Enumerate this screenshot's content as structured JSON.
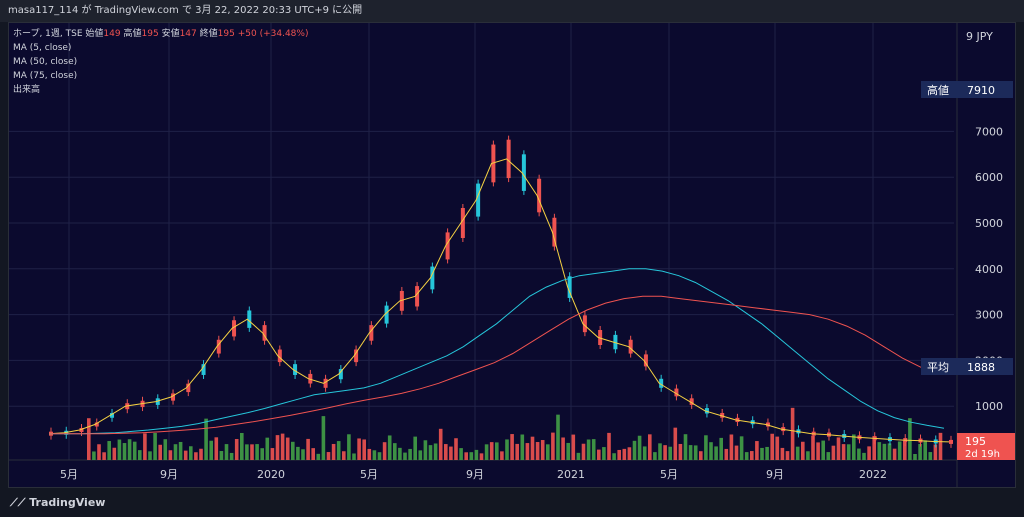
{
  "topbar": {
    "text": "masa117_114 が TradingView.com で 3月 22, 2022 20:33 UTC+9 に公開"
  },
  "legend": {
    "symbol": "ホープ, 1週, TSE",
    "o_label": "始値",
    "o_val": "149",
    "h_label": "高値",
    "h_val": "195",
    "l_label": "安値",
    "l_val": "147",
    "c_label": "終値",
    "c_val": "195",
    "change": "+50 (+34.48%)",
    "ma1": "MA (5, close)",
    "ma2": "MA (50, close)",
    "ma3": "MA (75, close)",
    "volume": "出来高"
  },
  "axis": {
    "currency": "9 JPY",
    "high_label": "高値",
    "high_value": "7910",
    "avg_label": "平均",
    "avg_value": "1888",
    "last_value": "195",
    "countdown": "2d 19h"
  },
  "footer": {
    "brand": "TradingView"
  },
  "colors": {
    "up": "#26a69a",
    "down": "#ef5350",
    "bull_bar": "#ef5350",
    "bear_bar": "#26c6da",
    "ma5": "#f5d142",
    "ma50": "#26c6da",
    "ma75": "#ef5350",
    "bg": "#131722"
  },
  "chart_data": {
    "type": "line",
    "title": "",
    "x_ticks": [
      "5月",
      "9月",
      "2020",
      "5月",
      "9月",
      "2021",
      "5月",
      "9月",
      "2022"
    ],
    "y_ticks": [
      1000,
      2000,
      3000,
      4000,
      5000,
      6000,
      7000
    ],
    "ylim": [
      0,
      9000
    ],
    "ylabel": "JPY",
    "series": [
      {
        "name": "MA (5, close)",
        "values": [
          400,
          420,
          480,
          600,
          800,
          1000,
          1050,
          1100,
          1200,
          1400,
          1800,
          2300,
          2700,
          2900,
          2600,
          2100,
          1800,
          1600,
          1500,
          1700,
          2100,
          2600,
          3000,
          3300,
          3400,
          3800,
          4500,
          5000,
          5500,
          6300,
          6400,
          6100,
          5600,
          4800,
          3600,
          2800,
          2500,
          2400,
          2300,
          2000,
          1500,
          1300,
          1100,
          900,
          800,
          700,
          650,
          600,
          500,
          450,
          400,
          380,
          350,
          320,
          300,
          280,
          260,
          250,
          230,
          220
        ]
      },
      {
        "name": "MA (50, close)",
        "values": [
          400,
          400,
          400,
          410,
          420,
          450,
          480,
          520,
          560,
          620,
          700,
          780,
          860,
          950,
          1050,
          1150,
          1250,
          1300,
          1350,
          1400,
          1500,
          1650,
          1800,
          1950,
          2100,
          2300,
          2550,
          2800,
          3100,
          3400,
          3600,
          3750,
          3850,
          3900,
          3950,
          4000,
          4000,
          3950,
          3850,
          3700,
          3500,
          3300,
          3050,
          2800,
          2500,
          2200,
          1900,
          1600,
          1350,
          1100,
          900,
          750,
          650,
          580,
          520
        ]
      },
      {
        "name": "MA (75, close)",
        "values": [
          400,
          400,
          400,
          400,
          410,
          420,
          440,
          470,
          500,
          540,
          600,
          660,
          730,
          800,
          880,
          960,
          1050,
          1130,
          1200,
          1280,
          1380,
          1500,
          1650,
          1800,
          1950,
          2150,
          2400,
          2650,
          2900,
          3100,
          3250,
          3350,
          3400,
          3400,
          3350,
          3300,
          3250,
          3200,
          3150,
          3100,
          3050,
          3000,
          2900,
          2750,
          2550,
          2300,
          2050,
          1850
        ]
      }
    ],
    "high": 7910,
    "average": 1888,
    "last": 195
  }
}
